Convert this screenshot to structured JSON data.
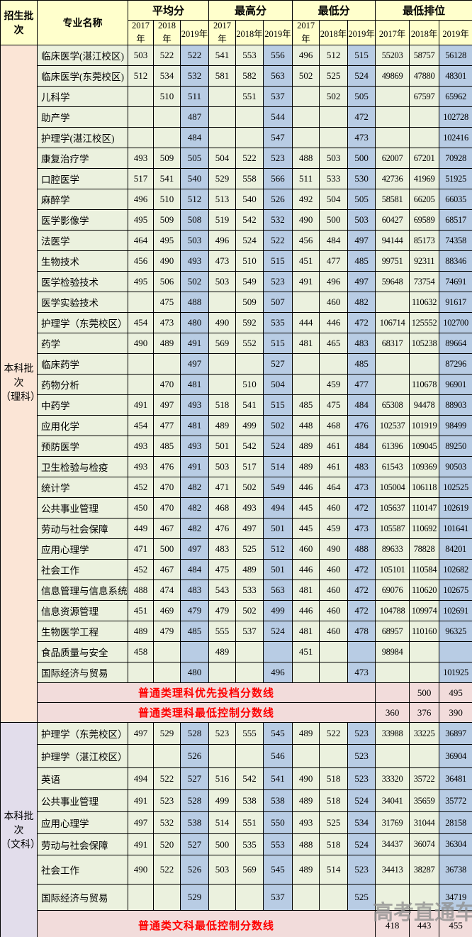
{
  "header": {
    "batch": "招生批次",
    "major": "专业名称",
    "groups": [
      "平均分",
      "最高分",
      "最低分",
      "最低排位"
    ],
    "years": [
      "2017年",
      "2018年",
      "2019年"
    ]
  },
  "watermark": "高考直通车",
  "colors": {
    "header_bg": "#FFFFCC",
    "cell_bg": "#EBF1DE",
    "year2019_bg": "#B8CCE4",
    "science_batch_bg": "#FBE5D6",
    "liberal_batch_bg": "#E2DDEB",
    "cutoff_row_bg": "#F2DCDB",
    "cutoff_text": "#FF0000",
    "watermark_text": "#8F8F8F",
    "border": "#000000"
  },
  "sections": [
    {
      "id": "science",
      "batch_label": [
        "本科批次",
        "（理科）"
      ],
      "rows": [
        {
          "major": "临床医学(湛江校区)",
          "avg": [
            "503",
            "522",
            "522"
          ],
          "max": [
            "541",
            "553",
            "556"
          ],
          "min": [
            "496",
            "512",
            "515"
          ],
          "rank": [
            "55203",
            "58757",
            "56128"
          ]
        },
        {
          "major": "临床医学(东莞校区)",
          "avg": [
            "512",
            "534",
            "532"
          ],
          "max": [
            "581",
            "582",
            "563"
          ],
          "min": [
            "502",
            "525",
            "524"
          ],
          "rank": [
            "49869",
            "47880",
            "48301"
          ]
        },
        {
          "major": "儿科学",
          "avg": [
            "",
            "510",
            "511"
          ],
          "max": [
            "",
            "551",
            "537"
          ],
          "min": [
            "",
            "502",
            "505"
          ],
          "rank": [
            "",
            "67597",
            "65962"
          ]
        },
        {
          "major": "助产学",
          "avg": [
            "",
            "",
            "487"
          ],
          "max": [
            "",
            "",
            "544"
          ],
          "min": [
            "",
            "",
            "472"
          ],
          "rank": [
            "",
            "",
            "102728"
          ]
        },
        {
          "major": "护理学(湛江校区)",
          "avg": [
            "",
            "",
            "484"
          ],
          "max": [
            "",
            "",
            "547"
          ],
          "min": [
            "",
            "",
            "473"
          ],
          "rank": [
            "",
            "",
            "102416"
          ]
        },
        {
          "major": "康复治疗学",
          "avg": [
            "493",
            "509",
            "505"
          ],
          "max": [
            "504",
            "522",
            "523"
          ],
          "min": [
            "488",
            "503",
            "500"
          ],
          "rank": [
            "62007",
            "67201",
            "70928"
          ]
        },
        {
          "major": "口腔医学",
          "avg": [
            "517",
            "541",
            "540"
          ],
          "max": [
            "529",
            "558",
            "566"
          ],
          "min": [
            "511",
            "533",
            "530"
          ],
          "rank": [
            "42736",
            "41969",
            "51925"
          ]
        },
        {
          "major": "麻醉学",
          "avg": [
            "496",
            "510",
            "512"
          ],
          "max": [
            "513",
            "540",
            "526"
          ],
          "min": [
            "492",
            "504",
            "505"
          ],
          "rank": [
            "58581",
            "66205",
            "66035"
          ]
        },
        {
          "major": "医学影像学",
          "avg": [
            "495",
            "509",
            "508"
          ],
          "max": [
            "519",
            "542",
            "532"
          ],
          "min": [
            "490",
            "500",
            "503"
          ],
          "rank": [
            "60427",
            "69589",
            "68517"
          ]
        },
        {
          "major": "法医学",
          "avg": [
            "464",
            "495",
            "503"
          ],
          "max": [
            "496",
            "524",
            "522"
          ],
          "min": [
            "456",
            "484",
            "497"
          ],
          "rank": [
            "94144",
            "85173",
            "74358"
          ]
        },
        {
          "major": "生物技术",
          "avg": [
            "456",
            "490",
            "493"
          ],
          "max": [
            "473",
            "510",
            "515"
          ],
          "min": [
            "451",
            "477",
            "485"
          ],
          "rank": [
            "99751",
            "92311",
            "88346"
          ]
        },
        {
          "major": "医学检验技术",
          "avg": [
            "495",
            "506",
            "502"
          ],
          "max": [
            "503",
            "549",
            "523"
          ],
          "min": [
            "491",
            "496",
            "497"
          ],
          "rank": [
            "59648",
            "73754",
            "74691"
          ]
        },
        {
          "major": "医学实验技术",
          "avg": [
            "",
            "475",
            "488"
          ],
          "max": [
            "",
            "509",
            "507"
          ],
          "min": [
            "",
            "460",
            "482"
          ],
          "rank": [
            "",
            "110632",
            "91617"
          ]
        },
        {
          "major": "护理学（东莞校区）",
          "avg": [
            "454",
            "473",
            "480"
          ],
          "max": [
            "490",
            "592",
            "535"
          ],
          "min": [
            "444",
            "446",
            "472"
          ],
          "rank": [
            "106714",
            "125552",
            "102700"
          ]
        },
        {
          "major": "药学",
          "avg": [
            "490",
            "489",
            "491"
          ],
          "max": [
            "569",
            "552",
            "515"
          ],
          "min": [
            "481",
            "465",
            "483"
          ],
          "rank": [
            "68317",
            "105238",
            "89664"
          ]
        },
        {
          "major": "临床药学",
          "avg": [
            "",
            "",
            "497"
          ],
          "max": [
            "",
            "",
            "527"
          ],
          "min": [
            "",
            "",
            "485"
          ],
          "rank": [
            "",
            "",
            "87296"
          ]
        },
        {
          "major": "药物分析",
          "avg": [
            "",
            "470",
            "481"
          ],
          "max": [
            "",
            "510",
            "504"
          ],
          "min": [
            "",
            "459",
            "477"
          ],
          "rank": [
            "",
            "110678",
            "96901"
          ]
        },
        {
          "major": "中药学",
          "avg": [
            "491",
            "497",
            "493"
          ],
          "max": [
            "518",
            "541",
            "515"
          ],
          "min": [
            "485",
            "475",
            "484"
          ],
          "rank": [
            "65308",
            "94478",
            "88903"
          ]
        },
        {
          "major": "应用化学",
          "avg": [
            "454",
            "477",
            "481"
          ],
          "max": [
            "489",
            "499",
            "502"
          ],
          "min": [
            "448",
            "468",
            "476"
          ],
          "rank": [
            "102537",
            "101919",
            "98499"
          ]
        },
        {
          "major": "预防医学",
          "avg": [
            "493",
            "485",
            "493"
          ],
          "max": [
            "501",
            "542",
            "524"
          ],
          "min": [
            "489",
            "461",
            "484"
          ],
          "rank": [
            "61396",
            "109045",
            "89250"
          ]
        },
        {
          "major": "卫生检验与检疫",
          "avg": [
            "493",
            "476",
            "491"
          ],
          "max": [
            "503",
            "517",
            "514"
          ],
          "min": [
            "489",
            "461",
            "483"
          ],
          "rank": [
            "61543",
            "109369",
            "90503"
          ]
        },
        {
          "major": "统计学",
          "avg": [
            "452",
            "470",
            "482"
          ],
          "max": [
            "471",
            "502",
            "549"
          ],
          "min": [
            "446",
            "464",
            "473"
          ],
          "rank": [
            "105004",
            "106118",
            "102525"
          ]
        },
        {
          "major": "公共事业管理",
          "avg": [
            "450",
            "470",
            "482"
          ],
          "max": [
            "468",
            "493",
            "494"
          ],
          "min": [
            "445",
            "460",
            "472"
          ],
          "rank": [
            "105637",
            "110147",
            "102619"
          ]
        },
        {
          "major": "劳动与社会保障",
          "avg": [
            "449",
            "467",
            "482"
          ],
          "max": [
            "476",
            "497",
            "501"
          ],
          "min": [
            "445",
            "459",
            "473"
          ],
          "rank": [
            "105587",
            "110692",
            "101641"
          ]
        },
        {
          "major": "应用心理学",
          "avg": [
            "471",
            "500",
            "497"
          ],
          "max": [
            "483",
            "525",
            "512"
          ],
          "min": [
            "460",
            "490",
            "488"
          ],
          "rank": [
            "89633",
            "78828",
            "84201"
          ]
        },
        {
          "major": "社会工作",
          "avg": [
            "452",
            "467",
            "484"
          ],
          "max": [
            "475",
            "489",
            "501"
          ],
          "min": [
            "446",
            "460",
            "472"
          ],
          "rank": [
            "105101",
            "110584",
            "102682"
          ]
        },
        {
          "major": "信息管理与信息系统",
          "avg": [
            "488",
            "474",
            "483"
          ],
          "max": [
            "543",
            "533",
            "563"
          ],
          "min": [
            "481",
            "460",
            "472"
          ],
          "rank": [
            "69076",
            "110620",
            "102675"
          ]
        },
        {
          "major": "信息资源管理",
          "avg": [
            "451",
            "469",
            "479"
          ],
          "max": [
            "479",
            "502",
            "499"
          ],
          "min": [
            "446",
            "460",
            "472"
          ],
          "rank": [
            "104788",
            "109974",
            "102691"
          ]
        },
        {
          "major": "生物医学工程",
          "avg": [
            "489",
            "479",
            "485"
          ],
          "max": [
            "555",
            "537",
            "524"
          ],
          "min": [
            "481",
            "460",
            "478"
          ],
          "rank": [
            "68957",
            "110160",
            "96325"
          ]
        },
        {
          "major": "食品质量与安全",
          "avg": [
            "458",
            "",
            ""
          ],
          "max": [
            "489",
            "",
            ""
          ],
          "min": [
            "451",
            "",
            ""
          ],
          "rank": [
            "98984",
            "",
            ""
          ]
        },
        {
          "major": "国际经济与贸易",
          "avg": [
            "",
            "",
            "480"
          ],
          "max": [
            "",
            "",
            "496"
          ],
          "min": [
            "",
            "",
            "473"
          ],
          "rank": [
            "",
            "",
            "101925"
          ]
        }
      ],
      "special_rows": [
        {
          "label": "普通类理科优先投档分数线",
          "ranks": [
            "",
            "500",
            "495"
          ]
        },
        {
          "label": "普通类理科最低控制分数线",
          "ranks": [
            "360",
            "376",
            "390"
          ]
        }
      ]
    },
    {
      "id": "liberal-arts",
      "batch_label": [
        "本科批次",
        "（文科）"
      ],
      "rows": [
        {
          "major": "护理学（东莞校区）",
          "avg": [
            "497",
            "529",
            "528"
          ],
          "max": [
            "523",
            "555",
            "545"
          ],
          "min": [
            "489",
            "522",
            "523"
          ],
          "rank": [
            "33988",
            "33225",
            "36897"
          ]
        },
        {
          "major": "护理学（湛江校区）",
          "avg": [
            "",
            "",
            "526"
          ],
          "max": [
            "",
            "",
            "546"
          ],
          "min": [
            "",
            "",
            "523"
          ],
          "rank": [
            "",
            "",
            "36904"
          ]
        },
        {
          "major": "英语",
          "avg": [
            "494",
            "522",
            "527"
          ],
          "max": [
            "516",
            "542",
            "541"
          ],
          "min": [
            "490",
            "518",
            "523"
          ],
          "rank": [
            "33320",
            "35722",
            "36481"
          ]
        },
        {
          "major": "公共事业管理",
          "avg": [
            "491",
            "523",
            "528"
          ],
          "max": [
            "499",
            "538",
            "538"
          ],
          "min": [
            "489",
            "518",
            "524"
          ],
          "rank": [
            "34041",
            "35659",
            "35772"
          ]
        },
        {
          "major": "应用心理学",
          "avg": [
            "497",
            "532",
            "538"
          ],
          "max": [
            "514",
            "551",
            "550"
          ],
          "min": [
            "493",
            "525",
            "534"
          ],
          "rank": [
            "31769",
            "31044",
            "28158"
          ]
        },
        {
          "major": "劳动与社会保障",
          "avg": [
            "491",
            "520",
            "527"
          ],
          "max": [
            "500",
            "535",
            "553"
          ],
          "min": [
            "488",
            "518",
            "524"
          ],
          "rank": [
            "34437",
            "36074",
            "36304"
          ]
        },
        {
          "major": "社会工作",
          "avg": [
            "490",
            "522",
            "526"
          ],
          "max": [
            "503",
            "569",
            "545"
          ],
          "min": [
            "489",
            "514",
            "523"
          ],
          "rank": [
            "34413",
            "38287",
            "36738"
          ]
        },
        {
          "major": "国际经济与贸易",
          "avg": [
            "",
            "",
            "529"
          ],
          "max": [
            "",
            "",
            "537"
          ],
          "min": [
            "",
            "",
            "525"
          ],
          "rank": [
            "",
            "",
            "34719"
          ]
        }
      ],
      "special_rows": [
        {
          "label": "普通类文科最低控制分数线",
          "ranks": [
            "418",
            "443",
            "455"
          ]
        }
      ]
    }
  ]
}
